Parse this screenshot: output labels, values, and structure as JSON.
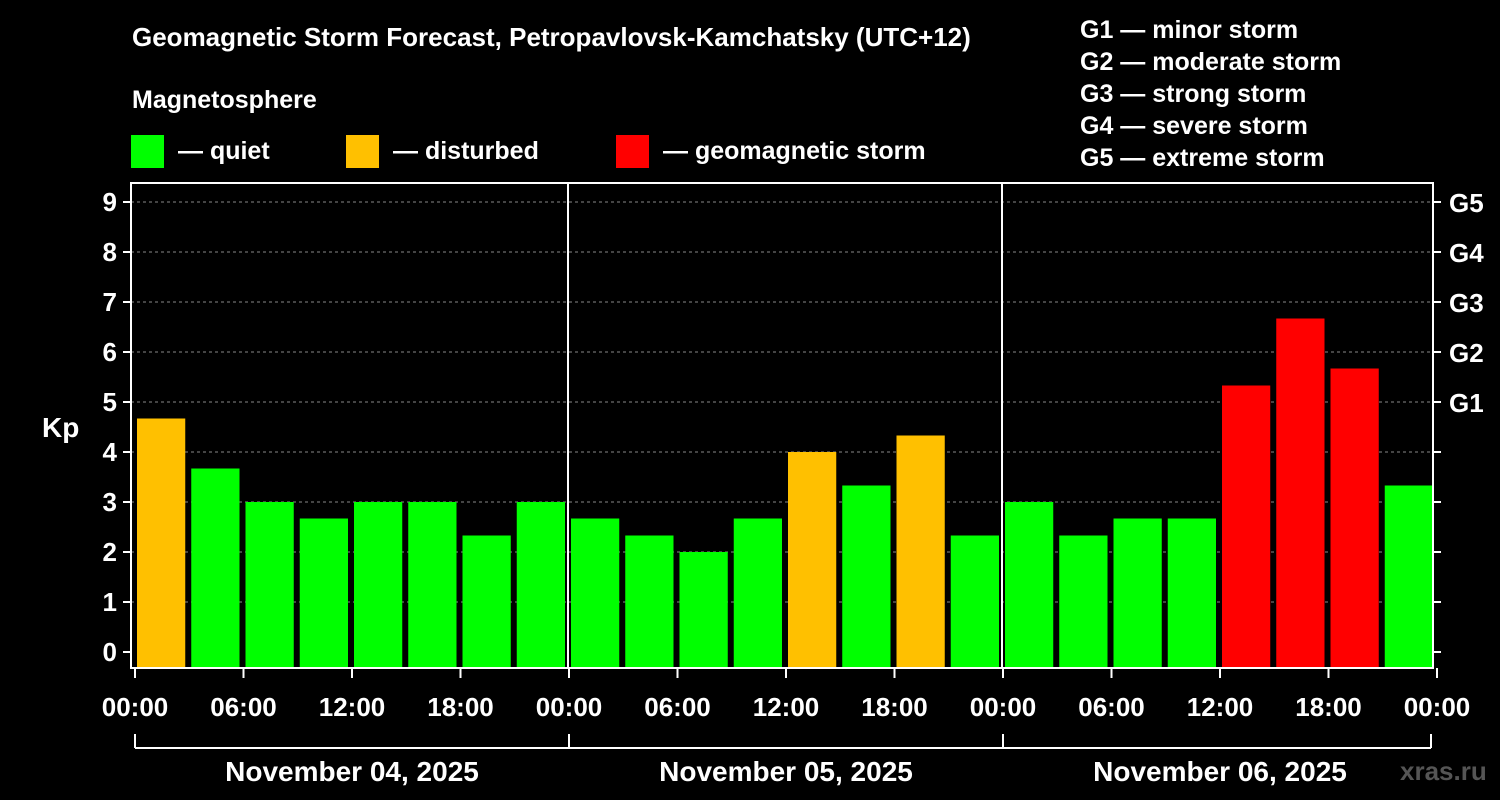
{
  "chart_data": {
    "type": "bar",
    "title": "Geomagnetic Storm Forecast, Petropavlovsk-Kamchatsky (UTC+12)",
    "subtitle": "Magnetosphere",
    "ylabel": "Kp",
    "ylim": [
      0,
      9
    ],
    "yticks": [
      "0",
      "1",
      "2",
      "3",
      "4",
      "5",
      "6",
      "7",
      "8",
      "9"
    ],
    "right_axis_ticks": [
      {
        "kp": 5,
        "label": "G1"
      },
      {
        "kp": 6,
        "label": "G2"
      },
      {
        "kp": 7,
        "label": "G3"
      },
      {
        "kp": 8,
        "label": "G4"
      },
      {
        "kp": 9,
        "label": "G5"
      }
    ],
    "grid": true,
    "legend": [
      {
        "label": "— quiet",
        "color": "#00ff00"
      },
      {
        "label": "— disturbed",
        "color": "#ffc000"
      },
      {
        "label": "— geomagnetic storm",
        "color": "#ff0000"
      }
    ],
    "storm_scale": [
      "G1 — minor storm",
      "G2 — moderate storm",
      "G3 — strong storm",
      "G4 — severe storm",
      "G5 — extreme storm"
    ],
    "xtick_labels": [
      "00:00",
      "06:00",
      "12:00",
      "18:00",
      "00:00",
      "06:00",
      "12:00",
      "18:00",
      "00:00",
      "06:00",
      "12:00",
      "18:00",
      "00:00"
    ],
    "days": [
      "November 04, 2025",
      "November 05, 2025",
      "November 06, 2025"
    ],
    "series": [
      {
        "values": [
          4.67,
          3.67,
          3.0,
          2.67,
          3.0,
          3.0,
          2.33,
          3.0,
          2.67,
          2.33,
          2.0,
          2.67,
          4.0,
          3.33,
          4.33,
          2.33,
          3.0,
          2.33,
          2.67,
          2.67,
          5.33,
          6.67,
          5.67,
          3.33
        ],
        "levels": [
          "disturbed",
          "quiet",
          "quiet",
          "quiet",
          "quiet",
          "quiet",
          "quiet",
          "quiet",
          "quiet",
          "quiet",
          "quiet",
          "quiet",
          "disturbed",
          "quiet",
          "disturbed",
          "quiet",
          "quiet",
          "quiet",
          "quiet",
          "quiet",
          "storm",
          "storm",
          "storm",
          "quiet"
        ]
      }
    ],
    "colors": {
      "quiet": "#00ff00",
      "disturbed": "#ffc000",
      "storm": "#ff0000"
    }
  },
  "watermark": "xras.ru"
}
